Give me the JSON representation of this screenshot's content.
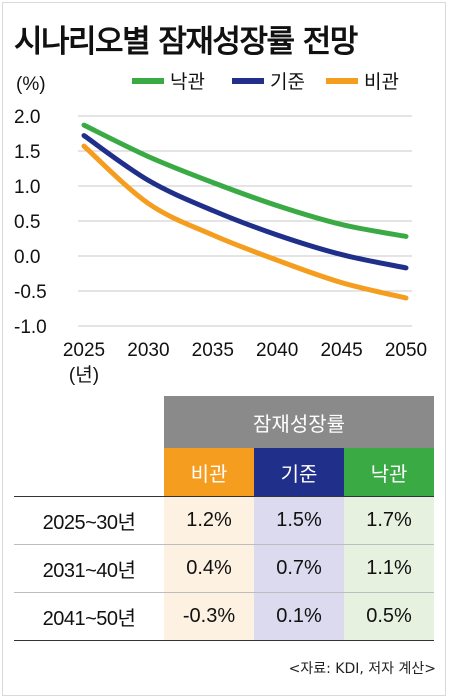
{
  "title": "시나리오별 잠재성장률 전망",
  "chart_data": {
    "type": "line",
    "ylabel": "(%)",
    "xlabel": "(년)",
    "x": [
      2025,
      2030,
      2035,
      2040,
      2045,
      2050
    ],
    "ylim": [
      -1.0,
      2.0
    ],
    "yticks": [
      "2.0",
      "1.5",
      "1.0",
      "0.5",
      "0.0",
      "-0.5",
      "-1.0"
    ],
    "ytick_values": [
      2.0,
      1.5,
      1.0,
      0.5,
      0.0,
      -0.5,
      -1.0
    ],
    "grid": true,
    "legend": "top-right",
    "series": [
      {
        "name": "낙관",
        "color": "#3aaa45",
        "values": [
          1.87,
          1.42,
          1.05,
          0.72,
          0.45,
          0.28
        ]
      },
      {
        "name": "기준",
        "color": "#1f2f8a",
        "values": [
          1.72,
          1.08,
          0.65,
          0.3,
          0.02,
          -0.17
        ]
      },
      {
        "name": "비관",
        "color": "#f59d1e",
        "values": [
          1.57,
          0.75,
          0.3,
          -0.06,
          -0.38,
          -0.6
        ]
      }
    ]
  },
  "table": {
    "group_header": "잠재성장률",
    "scenarios": [
      {
        "label": "비관",
        "header_color": "#f59d1e",
        "cell_color": "#fdf1e1"
      },
      {
        "label": "기준",
        "header_color": "#1f2f8a",
        "cell_color": "#dcdaee"
      },
      {
        "label": "낙관",
        "header_color": "#3aaa45",
        "cell_color": "#e6f2df"
      }
    ],
    "rows": [
      {
        "period": "2025~30년",
        "values": [
          "1.2%",
          "1.5%",
          "1.7%"
        ]
      },
      {
        "period": "2031~40년",
        "values": [
          "0.4%",
          "0.7%",
          "1.1%"
        ]
      },
      {
        "period": "2041~50년",
        "values": [
          "-0.3%",
          "0.1%",
          "0.5%"
        ]
      }
    ]
  },
  "source": "<자료: KDI, 저자 계산>"
}
